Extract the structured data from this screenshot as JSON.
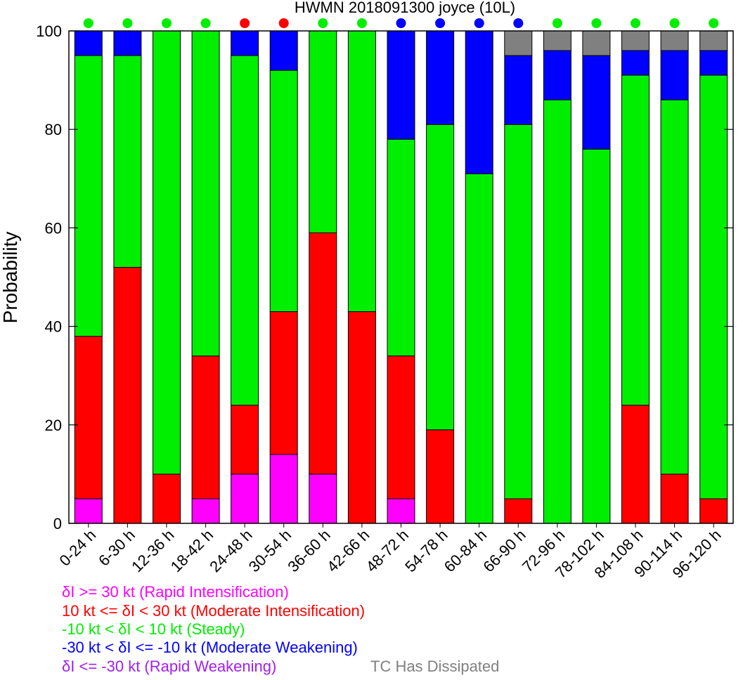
{
  "chart_data": {
    "type": "bar",
    "stacked": true,
    "title": "HWMN 2018091300 joyce (10L)",
    "xlabel": "",
    "ylabel": "Probability",
    "ylim": [
      0,
      100
    ],
    "yticks": [
      "0",
      "20",
      "40",
      "60",
      "80",
      "100"
    ],
    "categories": [
      "0-24 h",
      "6-30 h",
      "12-36 h",
      "18-42 h",
      "24-48 h",
      "30-54 h",
      "36-60 h",
      "42-66 h",
      "48-72 h",
      "54-78 h",
      "60-84 h",
      "66-90 h",
      "72-96 h",
      "78-102 h",
      "84-108 h",
      "90-114 h",
      "96-120 h"
    ],
    "series": [
      {
        "label": "δI >= 30 kt (Rapid Intensification)",
        "color": "#ff00ff",
        "values": [
          5,
          0,
          0,
          5,
          10,
          14,
          10,
          0,
          5,
          0,
          0,
          0,
          0,
          0,
          0,
          0,
          0
        ]
      },
      {
        "label": "10 kt <= δI < 30 kt (Moderate Intensification)",
        "color": "#ff0000",
        "values": [
          33,
          52,
          10,
          29,
          14,
          29,
          49,
          43,
          29,
          19,
          0,
          5,
          0,
          0,
          24,
          10,
          5
        ]
      },
      {
        "label": "-10 kt < δI < 10 kt (Steady)",
        "color": "#00ee00",
        "values": [
          57,
          43,
          90,
          66,
          71,
          49,
          41,
          57,
          44,
          62,
          71,
          76,
          86,
          76,
          67,
          76,
          86
        ]
      },
      {
        "label": "-30 kt < δI <= -10 kt (Moderate Weakening)",
        "color": "#0000ff",
        "values": [
          5,
          5,
          0,
          0,
          5,
          8,
          0,
          0,
          22,
          19,
          29,
          14,
          10,
          19,
          5,
          10,
          5
        ]
      },
      {
        "label": "δI <= -30 kt (Rapid Weakening)",
        "color": "#a020f0",
        "values": [
          0,
          0,
          0,
          0,
          0,
          0,
          0,
          0,
          0,
          0,
          0,
          0,
          0,
          0,
          0,
          0,
          0
        ]
      },
      {
        "label": "TC Has Dissipated",
        "color": "#808080",
        "values": [
          0,
          0,
          0,
          0,
          0,
          0,
          0,
          0,
          0,
          0,
          0,
          5,
          4,
          5,
          4,
          4,
          4
        ]
      }
    ],
    "top_markers": [
      "#00ee00",
      "#00ee00",
      "#00ee00",
      "#00ee00",
      "#ff0000",
      "#ff0000",
      "#00ee00",
      "#00ee00",
      "#0000ff",
      "#0000ff",
      "#0000ff",
      "#0000ff",
      "#00ee00",
      "#00ee00",
      "#00ee00",
      "#00ee00",
      "#00ee00"
    ]
  }
}
